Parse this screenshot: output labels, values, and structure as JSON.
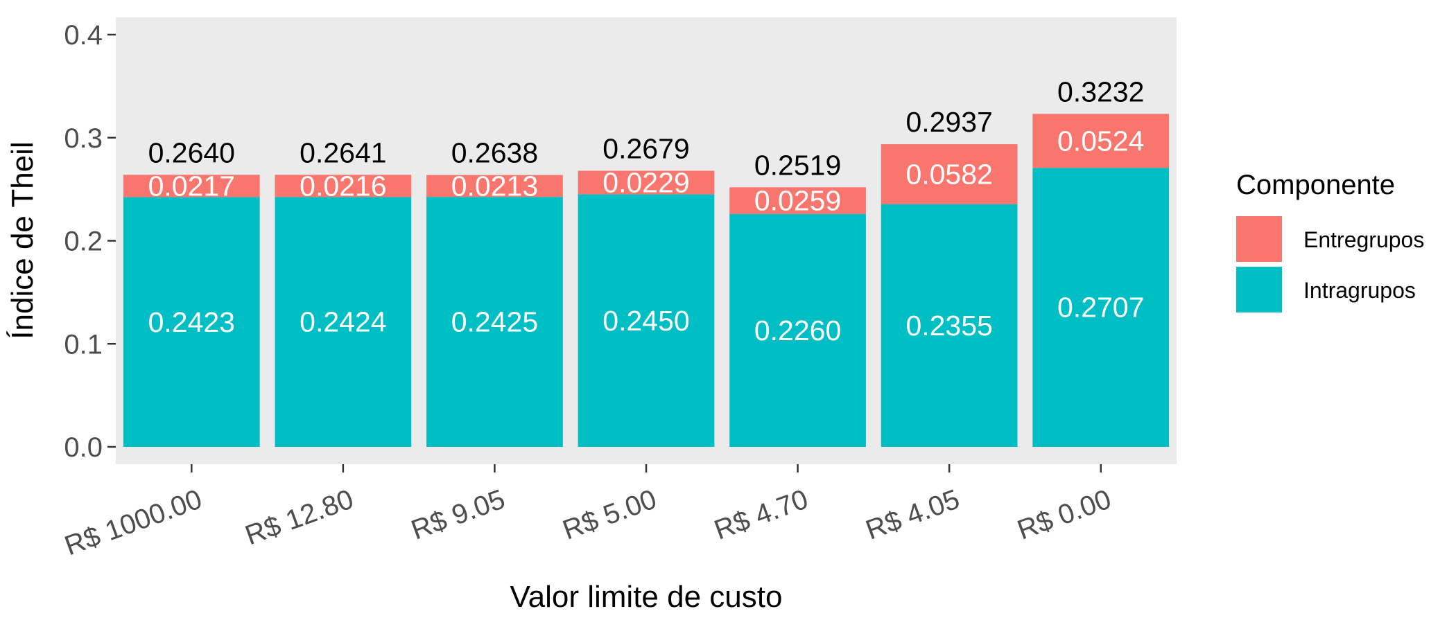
{
  "chart_data": {
    "type": "bar",
    "stacked": true,
    "title": "",
    "xlabel": "Valor limite de custo",
    "ylabel": "Índice de Theil",
    "ylim": [
      0,
      0.4
    ],
    "yticks": [
      "0.0",
      "0.1",
      "0.2",
      "0.3",
      "0.4"
    ],
    "categories": [
      "R$ 1000.00",
      "R$ 12.80",
      "R$ 9.05",
      "R$ 5.00",
      "R$ 4.70",
      "R$ 4.05",
      "R$ 0.00"
    ],
    "series": [
      {
        "name": "Intragrupos",
        "color": "#00BFC4",
        "values": [
          0.2423,
          0.2424,
          0.2425,
          0.245,
          0.226,
          0.2355,
          0.2707
        ],
        "labels": [
          "0.2423",
          "0.2424",
          "0.2425",
          "0.2450",
          "0.2260",
          "0.2355",
          "0.2707"
        ]
      },
      {
        "name": "Entregrupos",
        "color": "#F8766D",
        "values": [
          0.0217,
          0.0216,
          0.0213,
          0.0229,
          0.0259,
          0.0582,
          0.0524
        ],
        "labels": [
          "0.0217",
          "0.0216",
          "0.0213",
          "0.0229",
          "0.0259",
          "0.0582",
          "0.0524"
        ]
      }
    ],
    "totals": [
      "0.2640",
      "0.2641",
      "0.2638",
      "0.2679",
      "0.2519",
      "0.2937",
      "0.3232"
    ],
    "legend": {
      "title": "Componente",
      "position": "right",
      "entries": [
        {
          "label": "Entregrupos",
          "color": "#F8766D"
        },
        {
          "label": "Intragrupos",
          "color": "#00BFC4"
        }
      ]
    },
    "grid": false,
    "panel_background": "#EBEBEB"
  }
}
